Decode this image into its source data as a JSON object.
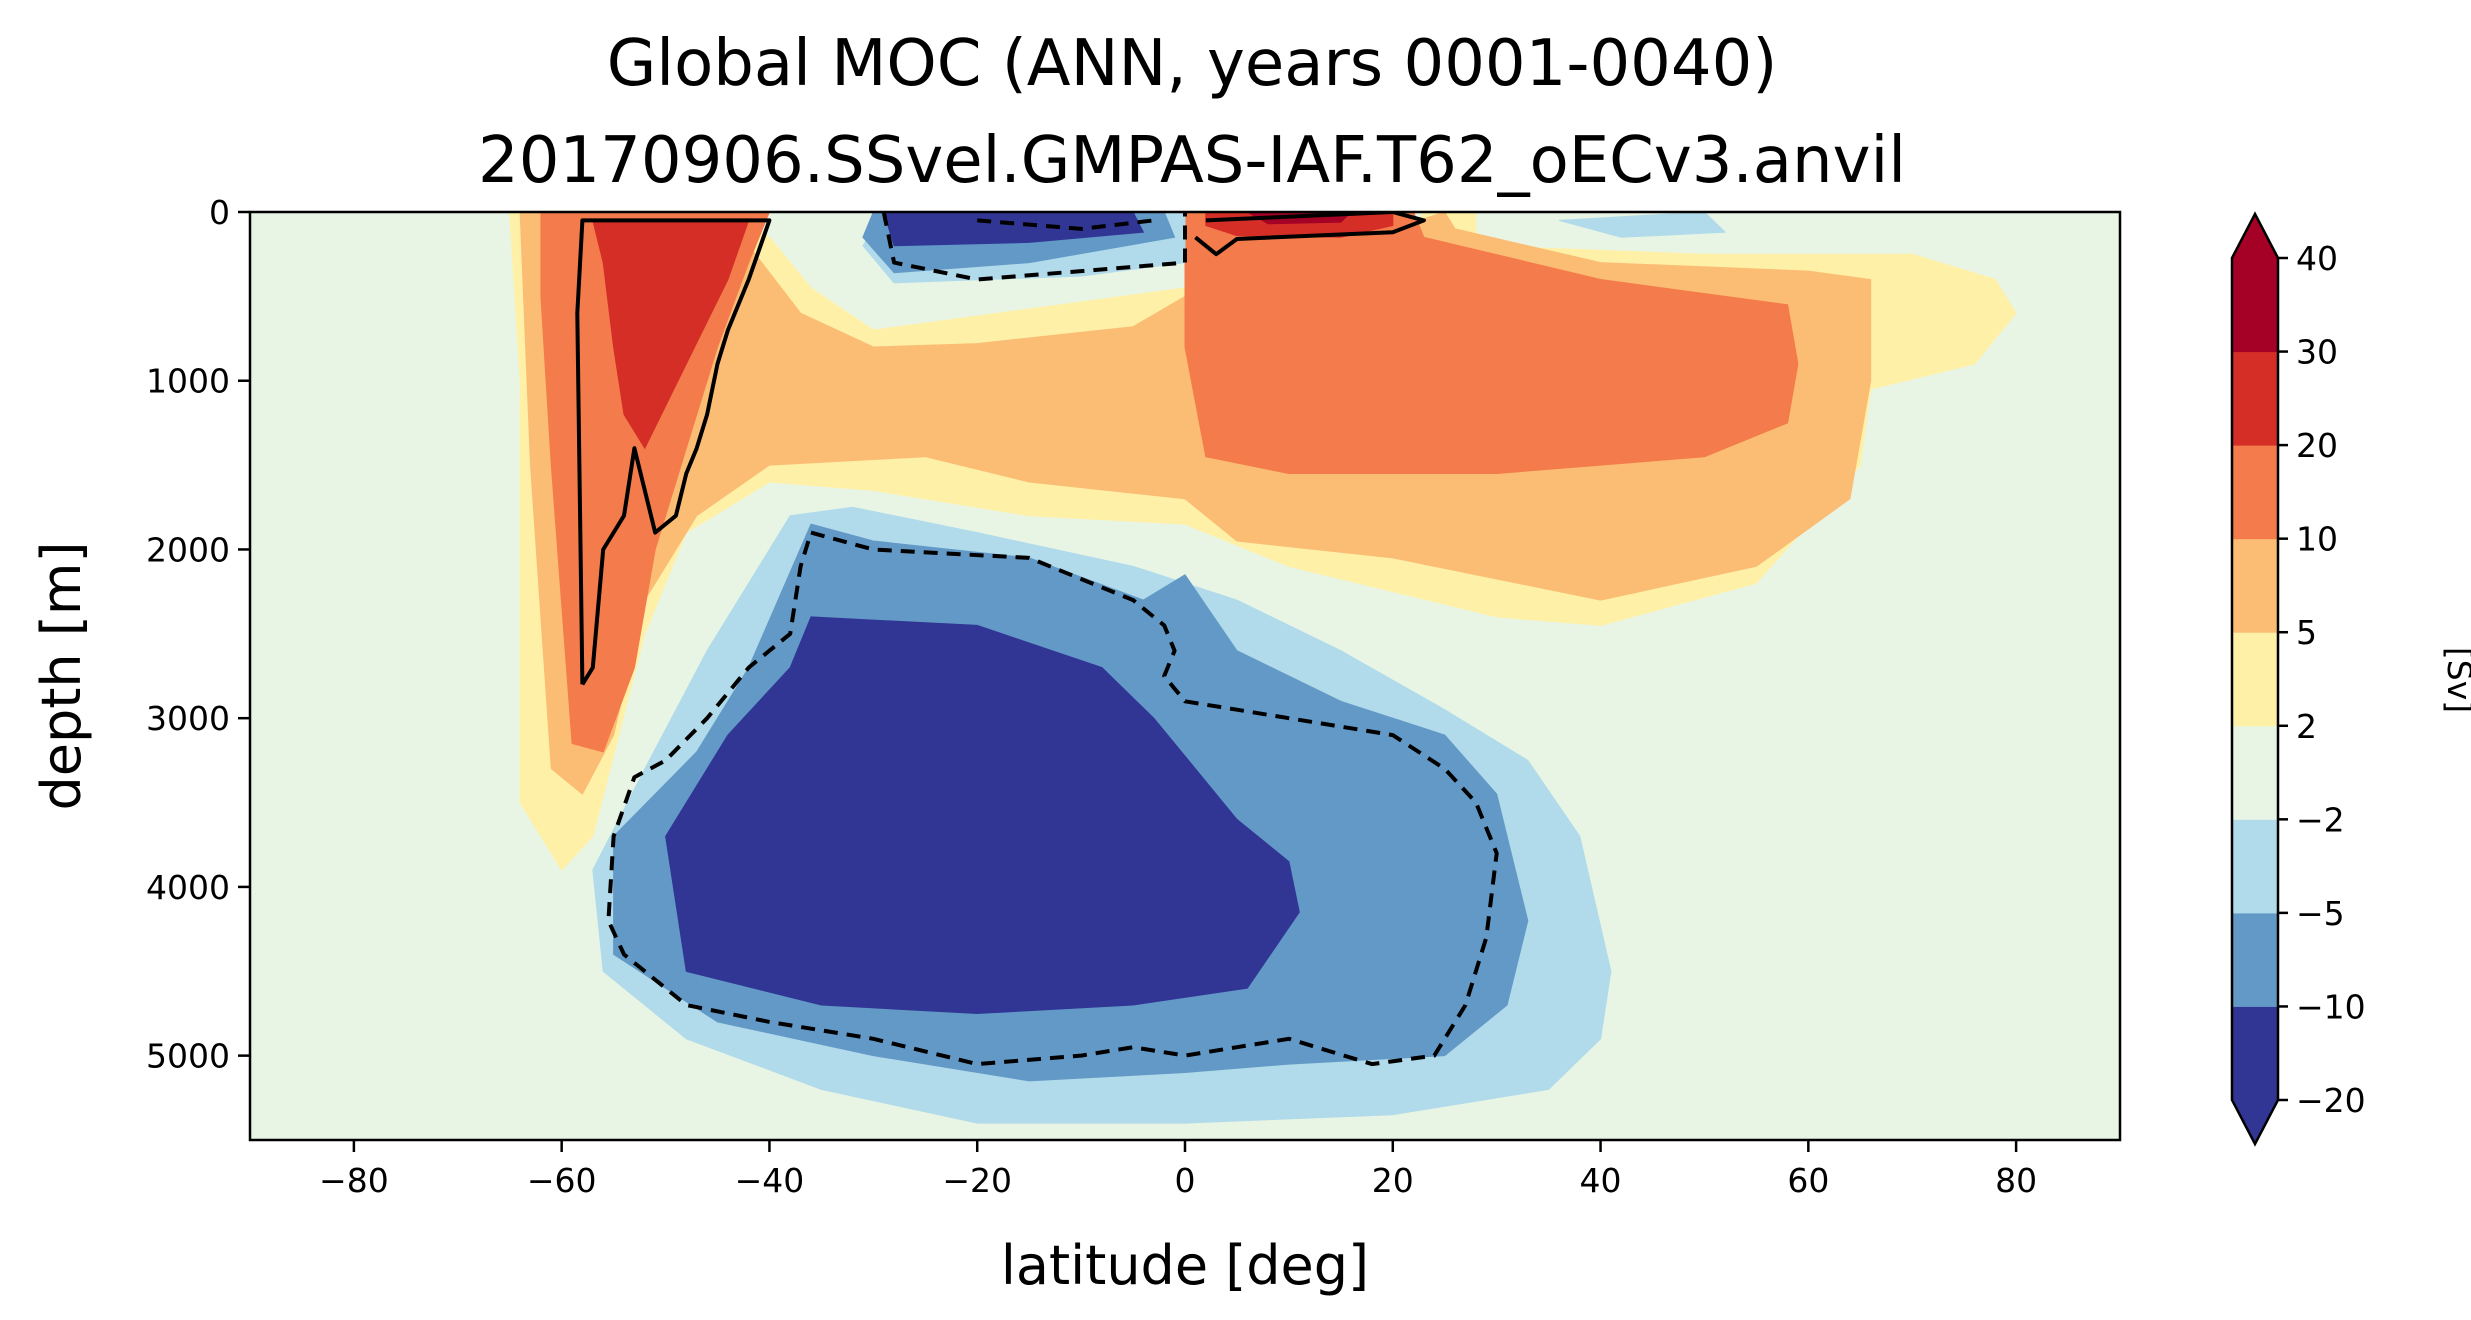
{
  "chart_data": {
    "type": "contourf",
    "title": [
      "Global MOC (ANN, years 0001-0040)",
      "20170906.SSvel.GMPAS-IAF.T62_oECv3.anvil"
    ],
    "xlabel": "latitude [deg]",
    "ylabel": "depth [m]",
    "xlim": [
      -90,
      90
    ],
    "ylim": [
      5500,
      0
    ],
    "y_inverted": true,
    "xticks": [
      -80,
      -60,
      -40,
      -20,
      0,
      20,
      40,
      60,
      80
    ],
    "yticks": [
      0,
      1000,
      2000,
      3000,
      4000,
      5000
    ],
    "colorbar": {
      "label": "[Sv]",
      "levels": [
        -20,
        -10,
        -5,
        -2,
        2,
        5,
        10,
        20,
        30,
        40
      ],
      "colors": [
        "#313695",
        "#6399c6",
        "#b1dbea",
        "#e9f5e4",
        "#fff0a8",
        "#fbbd74",
        "#f47b4b",
        "#d42e26",
        "#a50026"
      ],
      "extend_low_color": "#313695",
      "extend_high_color": "#a50026"
    },
    "background_color": "#e9f5e4",
    "contour_lines": [
      {
        "level": 10,
        "style": "solid"
      },
      {
        "level": -10,
        "style": "dashed"
      }
    ],
    "regions": [
      {
        "level": "2 to 5",
        "color": "#fff0a8",
        "points": [
          [
            -65,
            0
          ],
          [
            -45,
            0
          ],
          [
            -40,
            150
          ],
          [
            -36,
            450
          ],
          [
            -30,
            700
          ],
          [
            0,
            450
          ],
          [
            0,
            250
          ],
          [
            22,
            100
          ],
          [
            23,
            0
          ],
          [
            28,
            0
          ],
          [
            28,
            200
          ],
          [
            50,
            250
          ],
          [
            70,
            250
          ],
          [
            78,
            400
          ],
          [
            80,
            600
          ],
          [
            76,
            900
          ],
          [
            66,
            1050
          ],
          [
            65,
            1500
          ],
          [
            55,
            2200
          ],
          [
            40,
            2450
          ],
          [
            30,
            2400
          ],
          [
            10,
            2100
          ],
          [
            0,
            1850
          ],
          [
            -15,
            1800
          ],
          [
            -30,
            1650
          ],
          [
            -40,
            1600
          ],
          [
            -48,
            1900
          ],
          [
            -52,
            2500
          ],
          [
            -57,
            3700
          ],
          [
            -60,
            3900
          ],
          [
            -64,
            3500
          ],
          [
            -64,
            1000
          ]
        ]
      },
      {
        "level": "5 to 10",
        "color": "#fbbd74",
        "points": [
          [
            -64,
            0
          ],
          [
            -45,
            0
          ],
          [
            -42,
            200
          ],
          [
            -37,
            600
          ],
          [
            -30,
            800
          ],
          [
            -20,
            780
          ],
          [
            -5,
            680
          ],
          [
            0,
            500
          ],
          [
            25,
            0
          ],
          [
            26,
            100
          ],
          [
            40,
            300
          ],
          [
            60,
            350
          ],
          [
            66,
            400
          ],
          [
            66,
            1000
          ],
          [
            64,
            1700
          ],
          [
            55,
            2100
          ],
          [
            40,
            2300
          ],
          [
            20,
            2050
          ],
          [
            5,
            1950
          ],
          [
            0,
            1700
          ],
          [
            -15,
            1600
          ],
          [
            -25,
            1450
          ],
          [
            -40,
            1500
          ],
          [
            -47,
            1800
          ],
          [
            -52,
            2300
          ],
          [
            -55,
            3100
          ],
          [
            -58,
            3450
          ],
          [
            -61,
            3300
          ],
          [
            -63,
            1500
          ]
        ]
      },
      {
        "level": "10 to 20",
        "color": "#f47b4b",
        "points": [
          [
            -62,
            0
          ],
          [
            -40,
            0
          ],
          [
            -42,
            300
          ],
          [
            -45,
            800
          ],
          [
            -48,
            1400
          ],
          [
            -51,
            2000
          ],
          [
            -53,
            2700
          ],
          [
            -56,
            3200
          ],
          [
            -59,
            3150
          ],
          [
            -61,
            1500
          ],
          [
            -62,
            500
          ]
        ]
      },
      {
        "level": "10 to 20",
        "color": "#f47b4b",
        "points": [
          [
            0,
            0
          ],
          [
            22,
            0
          ],
          [
            23,
            150
          ],
          [
            40,
            400
          ],
          [
            58,
            550
          ],
          [
            59,
            900
          ],
          [
            58,
            1250
          ],
          [
            50,
            1450
          ],
          [
            30,
            1550
          ],
          [
            10,
            1550
          ],
          [
            2,
            1450
          ],
          [
            0,
            800
          ]
        ]
      },
      {
        "level": "20 to 30",
        "color": "#d42e26",
        "points": [
          [
            -57,
            50
          ],
          [
            -42,
            50
          ],
          [
            -44,
            400
          ],
          [
            -48,
            900
          ],
          [
            -52,
            1400
          ],
          [
            -54,
            1200
          ],
          [
            -55,
            800
          ],
          [
            -56,
            300
          ]
        ]
      },
      {
        "level": "20 to 30",
        "color": "#d42e26",
        "points": [
          [
            2,
            0
          ],
          [
            20,
            0
          ],
          [
            20,
            80
          ],
          [
            15,
            150
          ],
          [
            5,
            140
          ],
          [
            2,
            80
          ]
        ]
      },
      {
        "level": "30 to 40",
        "color": "#a50026",
        "points": [
          [
            6,
            0
          ],
          [
            16,
            0
          ],
          [
            15,
            60
          ],
          [
            8,
            70
          ]
        ]
      },
      {
        "level": "-5 to -2",
        "color": "#b1dbea",
        "points": [
          [
            -29,
            0
          ],
          [
            0,
            0
          ],
          [
            0,
            300
          ],
          [
            -10,
            380
          ],
          [
            -28,
            420
          ],
          [
            -31,
            200
          ]
        ]
      },
      {
        "level": "-5 to -2",
        "color": "#b1dbea",
        "points": [
          [
            -38,
            1800
          ],
          [
            -32,
            1750
          ],
          [
            -20,
            1900
          ],
          [
            -5,
            2100
          ],
          [
            5,
            2300
          ],
          [
            15,
            2600
          ],
          [
            25,
            2950
          ],
          [
            33,
            3250
          ],
          [
            38,
            3700
          ],
          [
            41,
            4500
          ],
          [
            40,
            4900
          ],
          [
            35,
            5200
          ],
          [
            20,
            5350
          ],
          [
            0,
            5400
          ],
          [
            -20,
            5400
          ],
          [
            -35,
            5200
          ],
          [
            -48,
            4900
          ],
          [
            -56,
            4500
          ],
          [
            -57,
            3900
          ],
          [
            -52,
            3300
          ],
          [
            -46,
            2600
          ],
          [
            -42,
            2200
          ]
        ]
      },
      {
        "level": "-5 to -2",
        "color": "#b1dbea",
        "points": [
          [
            36,
            50
          ],
          [
            50,
            0
          ],
          [
            52,
            120
          ],
          [
            42,
            150
          ]
        ]
      },
      {
        "level": "-10 to -5",
        "color": "#6399c6",
        "points": [
          [
            -30,
            0
          ],
          [
            -2,
            0
          ],
          [
            -1,
            150
          ],
          [
            -15,
            300
          ],
          [
            -28,
            360
          ],
          [
            -31,
            150
          ]
        ]
      },
      {
        "level": "-10 to -5",
        "color": "#6399c6",
        "points": [
          [
            -36,
            1850
          ],
          [
            -30,
            1950
          ],
          [
            -15,
            2050
          ],
          [
            -4,
            2300
          ],
          [
            0,
            2150
          ],
          [
            5,
            2600
          ],
          [
            15,
            2900
          ],
          [
            25,
            3100
          ],
          [
            30,
            3450
          ],
          [
            33,
            4200
          ],
          [
            31,
            4700
          ],
          [
            25,
            5000
          ],
          [
            10,
            5050
          ],
          [
            0,
            5100
          ],
          [
            -15,
            5150
          ],
          [
            -30,
            5000
          ],
          [
            -45,
            4800
          ],
          [
            -55,
            4400
          ],
          [
            -55,
            3700
          ],
          [
            -47,
            3200
          ],
          [
            -42,
            2700
          ]
        ]
      },
      {
        "level": "-20 to -10",
        "color": "#313695",
        "points": [
          [
            -29,
            0
          ],
          [
            -5,
            0
          ],
          [
            -4,
            120
          ],
          [
            -15,
            180
          ],
          [
            -28,
            200
          ]
        ]
      },
      {
        "level": "-20 to -10",
        "color": "#313695",
        "points": [
          [
            -36,
            2400
          ],
          [
            -20,
            2450
          ],
          [
            -8,
            2700
          ],
          [
            -3,
            3000
          ],
          [
            1,
            3300
          ],
          [
            5,
            3600
          ],
          [
            10,
            3850
          ],
          [
            11,
            4150
          ],
          [
            6,
            4600
          ],
          [
            -5,
            4700
          ],
          [
            -20,
            4750
          ],
          [
            -35,
            4700
          ],
          [
            -48,
            4500
          ],
          [
            -50,
            3700
          ],
          [
            -44,
            3100
          ],
          [
            -38,
            2700
          ]
        ]
      }
    ],
    "lines": [
      {
        "level": 10,
        "style": "solid",
        "points": [
          [
            -58,
            2800
          ],
          [
            -58.5,
            600
          ],
          [
            -58,
            50
          ],
          [
            -40,
            50
          ],
          [
            -42,
            400
          ],
          [
            -44,
            700
          ],
          [
            -45,
            900
          ],
          [
            -46,
            1200
          ],
          [
            -47,
            1400
          ],
          [
            -48,
            1550
          ],
          [
            -49,
            1800
          ],
          [
            -51,
            1900
          ],
          [
            -53,
            1400
          ],
          [
            -54,
            1800
          ],
          [
            -56,
            2000
          ],
          [
            -57,
            2700
          ],
          [
            -58,
            2800
          ]
        ]
      },
      {
        "level": 10,
        "style": "solid",
        "points": [
          [
            2,
            50
          ],
          [
            20,
            0
          ],
          [
            23,
            50
          ],
          [
            20,
            120
          ],
          [
            5,
            160
          ],
          [
            3,
            250
          ],
          [
            1,
            150
          ]
        ]
      },
      {
        "level": -10,
        "style": "dashed",
        "points": [
          [
            -29,
            0
          ],
          [
            -28,
            300
          ],
          [
            -20,
            400
          ],
          [
            -10,
            350
          ],
          [
            0,
            300
          ],
          [
            0,
            0
          ]
        ]
      },
      {
        "level": -10,
        "style": "dashed",
        "points": [
          [
            -20,
            50
          ],
          [
            -10,
            100
          ],
          [
            -3,
            50
          ]
        ]
      },
      {
        "level": -10,
        "style": "dashed",
        "points": [
          [
            -36,
            1900
          ],
          [
            -30,
            2000
          ],
          [
            -15,
            2050
          ],
          [
            -5,
            2300
          ],
          [
            -2,
            2450
          ],
          [
            -1,
            2600
          ],
          [
            -2,
            2750
          ],
          [
            0,
            2900
          ],
          [
            5,
            2950
          ],
          [
            10,
            3000
          ],
          [
            15,
            3050
          ],
          [
            20,
            3100
          ],
          [
            25,
            3300
          ],
          [
            28,
            3500
          ],
          [
            30,
            3800
          ],
          [
            29,
            4300
          ],
          [
            27,
            4700
          ],
          [
            24,
            5000
          ],
          [
            18,
            5050
          ],
          [
            10,
            4900
          ],
          [
            5,
            4950
          ],
          [
            0,
            5000
          ],
          [
            -5,
            4950
          ],
          [
            -10,
            5000
          ],
          [
            -20,
            5050
          ],
          [
            -30,
            4900
          ],
          [
            -40,
            4800
          ],
          [
            -48,
            4700
          ],
          [
            -54,
            4400
          ],
          [
            -55.5,
            4200
          ],
          [
            -55,
            3700
          ],
          [
            -53,
            3350
          ],
          [
            -50,
            3250
          ],
          [
            -46,
            3000
          ],
          [
            -42,
            2700
          ],
          [
            -38,
            2500
          ],
          [
            -37,
            2100
          ],
          [
            -36,
            1900
          ]
        ]
      }
    ]
  }
}
